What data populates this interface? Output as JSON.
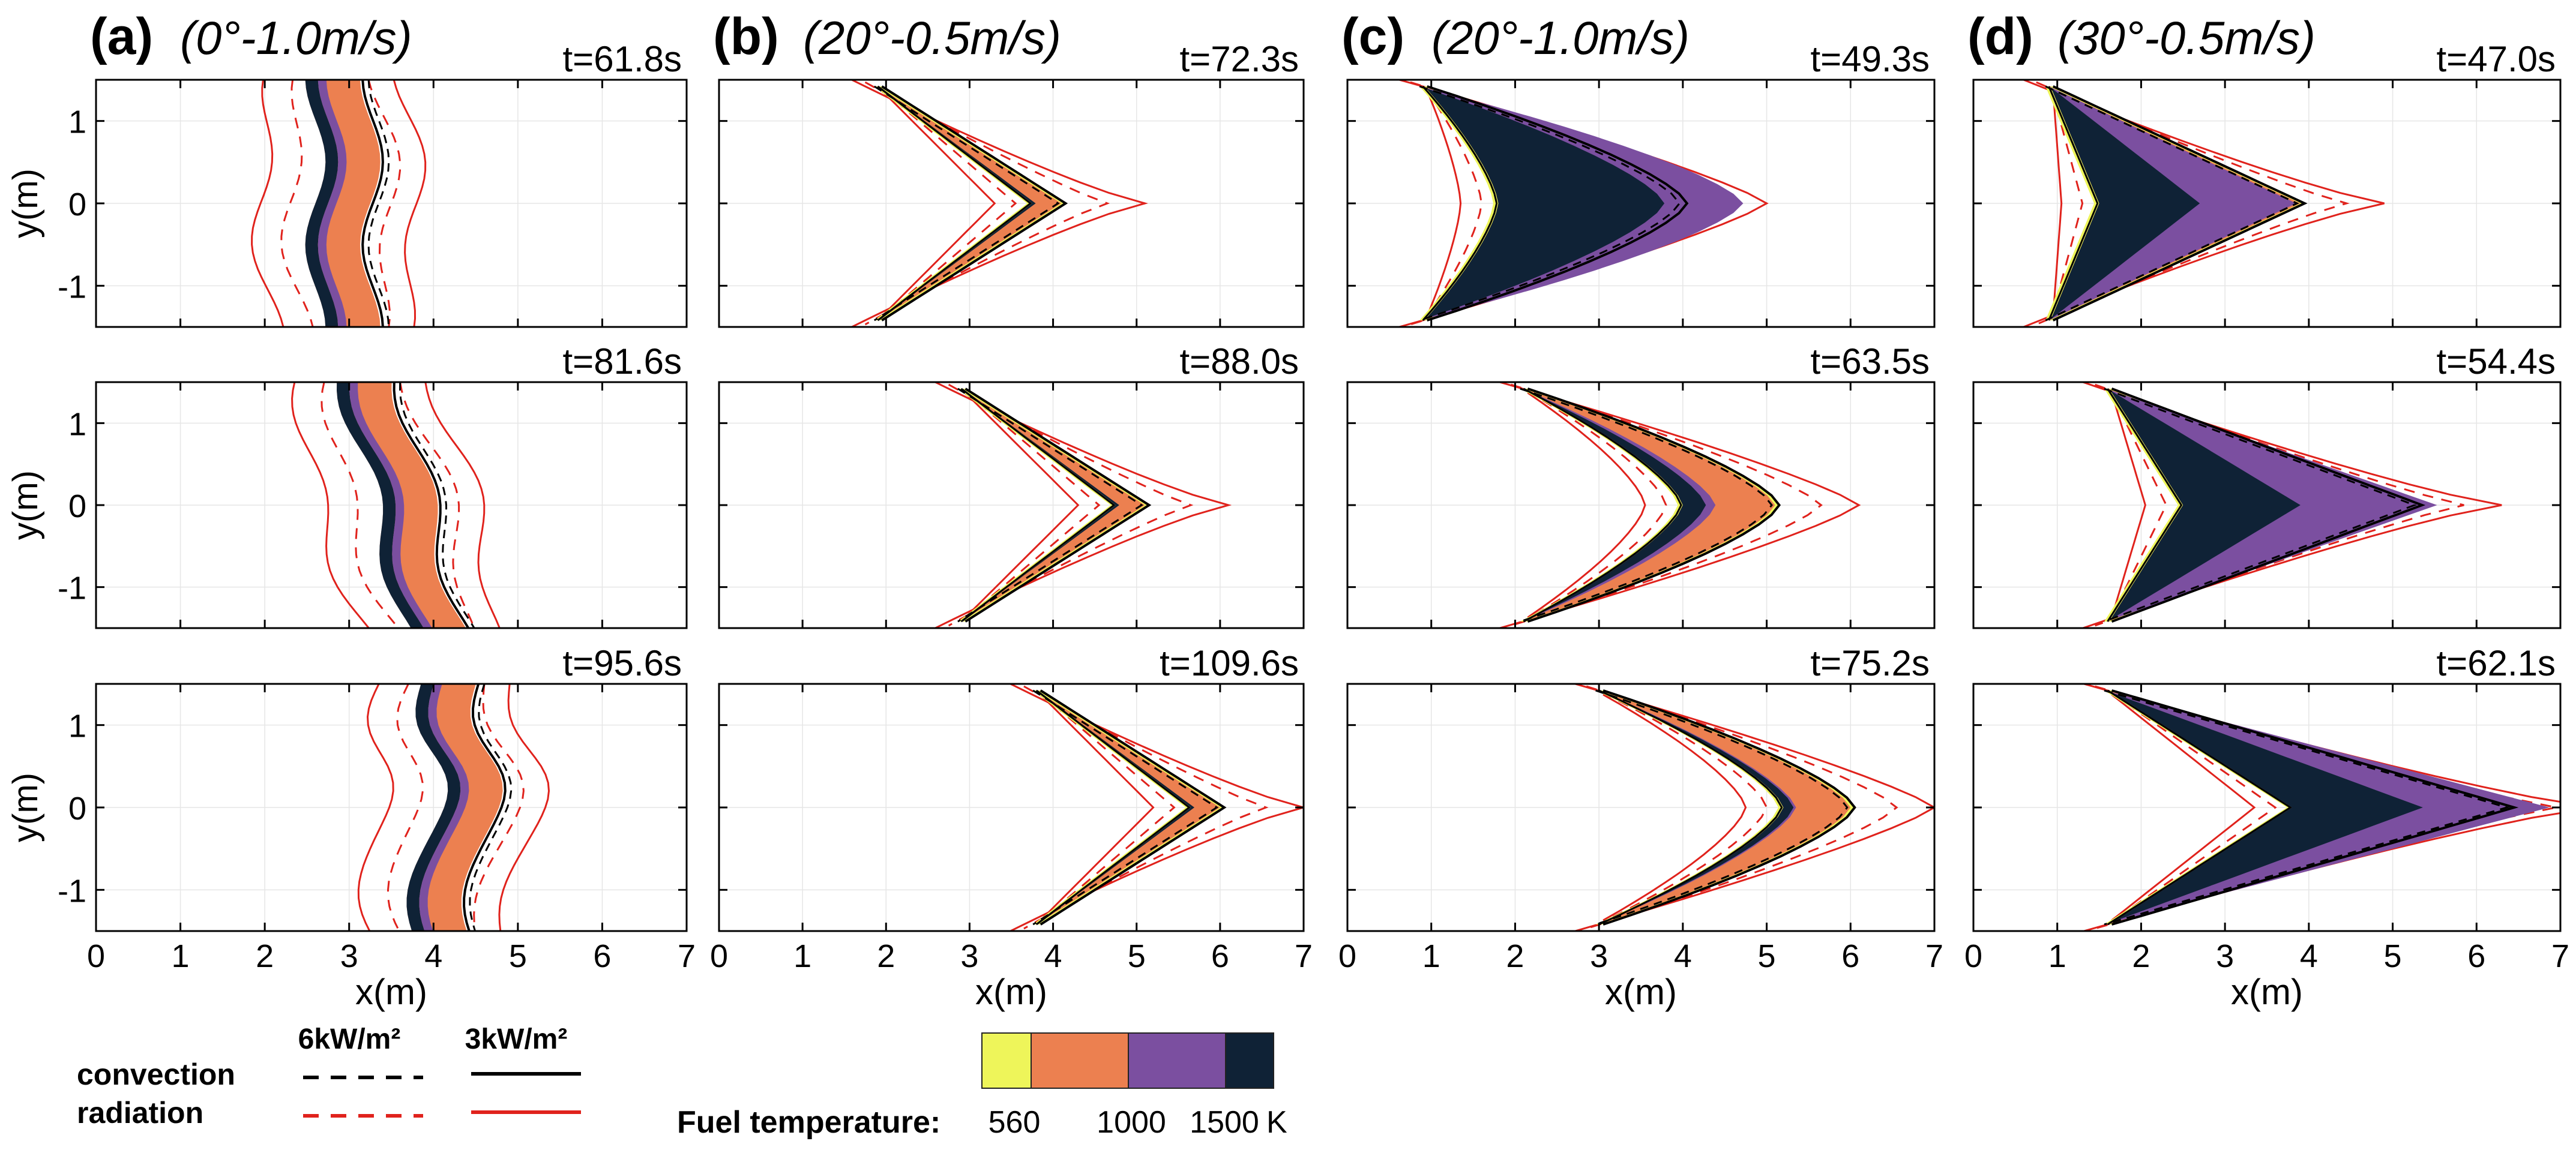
{
  "figure": {
    "description": "Fuel temperature contours with convection and radiation heat flux isolines for four fire spread cases",
    "xlabel": "x(m)",
    "ylabel": "y(m)",
    "x_ticks": [
      "0",
      "1",
      "2",
      "3",
      "4",
      "5",
      "6",
      "7"
    ],
    "y_ticks": [
      "1",
      "0",
      "-1"
    ]
  },
  "chart_data": [
    {
      "type": "heatmap",
      "panel_letter": "(a)",
      "case_label": "(0°-1.0m/s)",
      "snapshots": [
        "t=61.8s",
        "t=81.6s",
        "t=95.6s"
      ],
      "front_x_center": [
        2.9,
        3.6,
        4.1
      ],
      "front_shape": "flat-wavy",
      "xlim": [
        0,
        7
      ],
      "ylim": [
        -1.5,
        1.5
      ]
    },
    {
      "type": "heatmap",
      "panel_letter": "(b)",
      "case_label": "(20°-0.5m/s)",
      "snapshots": [
        "t=72.3s",
        "t=88.0s",
        "t=109.6s"
      ],
      "front_tip_x": [
        4.1,
        5.1,
        6.0
      ],
      "front_shape": "narrow-V",
      "xlim": [
        0,
        7
      ],
      "ylim": [
        -1.5,
        1.5
      ]
    },
    {
      "type": "heatmap",
      "panel_letter": "(c)",
      "case_label": "(20°-1.0m/s)",
      "snapshots": [
        "t=49.3s",
        "t=63.5s",
        "t=75.2s"
      ],
      "front_tip_x": [
        4.0,
        5.1,
        6.0
      ],
      "front_shape": "wide-V",
      "xlim": [
        0,
        7
      ],
      "ylim": [
        -1.5,
        1.5
      ]
    },
    {
      "type": "heatmap",
      "panel_letter": "(d)",
      "case_label": "(30°-0.5m/s)",
      "snapshots": [
        "t=47.0s",
        "t=54.4s",
        "t=62.1s"
      ],
      "front_tip_x": [
        3.9,
        5.3,
        6.4
      ],
      "front_shape": "fingered-V",
      "xlim": [
        0,
        7
      ],
      "ylim": [
        -1.5,
        1.5
      ]
    }
  ],
  "legend": {
    "flux_low": "6kW/m²",
    "flux_high": "3kW/m²",
    "convection": "convection",
    "radiation": "radiation",
    "convection_color": "#000000",
    "radiation_color": "#e0221c"
  },
  "colorbar": {
    "title": "Fuel temperature:",
    "unit": "K",
    "ticks": [
      "560",
      "1000",
      "1500"
    ],
    "bins": [
      {
        "from": 560,
        "to": 700,
        "color": "#eef55a"
      },
      {
        "from": 700,
        "to": 1000,
        "color": "#ec8050"
      },
      {
        "from": 1000,
        "to": 1500,
        "color": "#7b4fa0"
      },
      {
        "from": 1500,
        "to": 1800,
        "color": "#0f2236"
      }
    ]
  }
}
